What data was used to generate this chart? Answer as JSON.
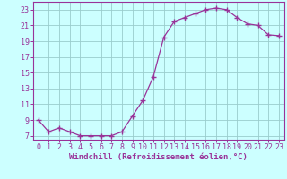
{
  "x": [
    0,
    1,
    2,
    3,
    4,
    5,
    6,
    7,
    8,
    9,
    10,
    11,
    12,
    13,
    14,
    15,
    16,
    17,
    18,
    19,
    20,
    21,
    22,
    23
  ],
  "y": [
    9,
    7.5,
    8,
    7.5,
    7,
    7,
    7,
    7,
    7.5,
    9.5,
    11.5,
    14.5,
    19.5,
    21.5,
    22,
    22.5,
    23,
    23.2,
    23,
    22,
    21.2,
    21,
    19.8,
    19.7
  ],
  "line_color": "#993399",
  "marker": "+",
  "marker_size": 4,
  "bg_color": "#ccffff",
  "grid_color": "#99cccc",
  "xlabel": "Windchill (Refroidissement éolien,°C)",
  "xlabel_fontsize": 6.5,
  "ylabel_ticks": [
    7,
    9,
    11,
    13,
    15,
    17,
    19,
    21,
    23
  ],
  "xtick_labels": [
    "0",
    "1",
    "2",
    "3",
    "4",
    "5",
    "6",
    "7",
    "8",
    "9",
    "10",
    "11",
    "12",
    "13",
    "14",
    "15",
    "16",
    "17",
    "18",
    "19",
    "20",
    "21",
    "22",
    "23"
  ],
  "ylim": [
    6.5,
    24.0
  ],
  "xlim": [
    -0.5,
    23.5
  ],
  "tick_fontsize": 6.0,
  "tick_color": "#993399",
  "spine_color": "#993399",
  "linewidth": 0.9
}
